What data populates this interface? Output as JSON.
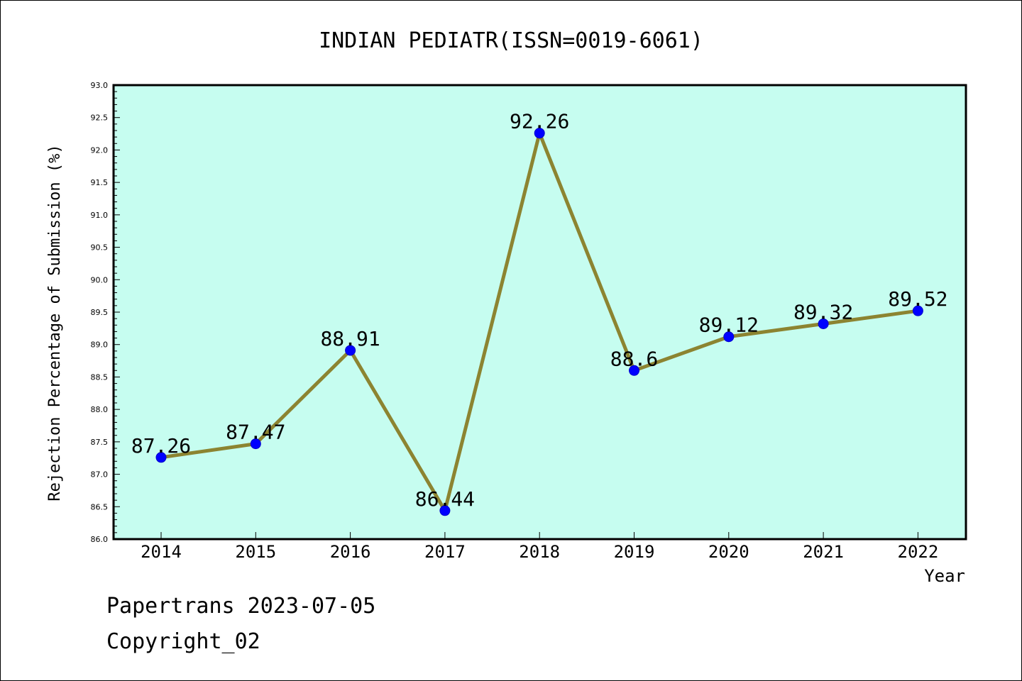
{
  "chart_data": {
    "type": "line",
    "title": "INDIAN PEDIATR(ISSN=0019-6061)",
    "xlabel": "Year",
    "ylabel": "Rejection Percentage of Submission (%)",
    "x": [
      "2014",
      "2015",
      "2016",
      "2017",
      "2018",
      "2019",
      "2020",
      "2021",
      "2022"
    ],
    "series": [
      {
        "values": [
          87.26,
          87.47,
          88.91,
          86.44,
          92.26,
          88.6,
          89.12,
          89.32,
          89.52
        ],
        "labels": [
          "87.26",
          "87.47",
          "88.91",
          "86.44",
          "92.26",
          "88.6",
          "89.12",
          "89.32",
          "89.52"
        ]
      }
    ],
    "ylim": [
      86.0,
      93.0
    ],
    "yticks": [
      "86.0",
      "86.5",
      "87.0",
      "87.5",
      "88.0",
      "88.5",
      "89.0",
      "89.5",
      "90.0",
      "90.5",
      "91.0",
      "91.5",
      "92.0",
      "92.5",
      "93.0"
    ],
    "grid": false,
    "colors": {
      "plot_background": "#c6fdf0",
      "line": "#8c8431",
      "marker": "#0000ff"
    }
  },
  "footer": {
    "line1": "Papertrans 2023-07-05",
    "line2": "Copyright_02"
  }
}
